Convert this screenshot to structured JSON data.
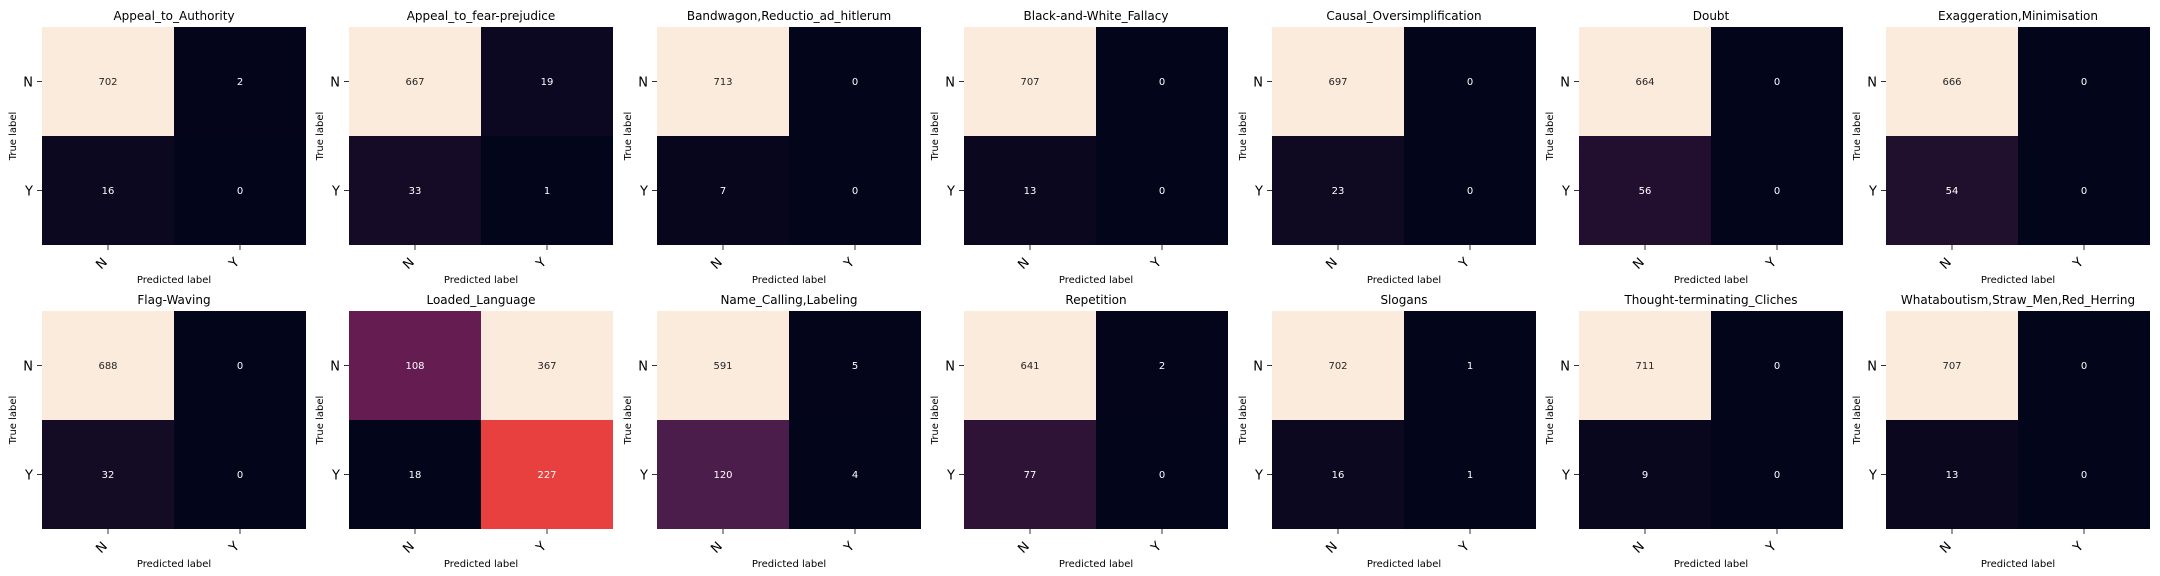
{
  "chart_data": [
    {
      "type": "heatmap",
      "title": "Appeal_to_Authority",
      "xlabel": "Predicted label",
      "ylabel": "True label",
      "x_categories": [
        "N",
        "Y"
      ],
      "y_categories": [
        "N",
        "Y"
      ],
      "values": [
        [
          702,
          2
        ],
        [
          16,
          0
        ]
      ]
    },
    {
      "type": "heatmap",
      "title": "Appeal_to_fear-prejudice",
      "xlabel": "Predicted label",
      "ylabel": "True label",
      "x_categories": [
        "N",
        "Y"
      ],
      "y_categories": [
        "N",
        "Y"
      ],
      "values": [
        [
          667,
          19
        ],
        [
          33,
          1
        ]
      ]
    },
    {
      "type": "heatmap",
      "title": "Bandwagon,Reductio_ad_hitlerum",
      "xlabel": "Predicted label",
      "ylabel": "True label",
      "x_categories": [
        "N",
        "Y"
      ],
      "y_categories": [
        "N",
        "Y"
      ],
      "values": [
        [
          713,
          0
        ],
        [
          7,
          0
        ]
      ]
    },
    {
      "type": "heatmap",
      "title": "Black-and-White_Fallacy",
      "xlabel": "Predicted label",
      "ylabel": "True label",
      "x_categories": [
        "N",
        "Y"
      ],
      "y_categories": [
        "N",
        "Y"
      ],
      "values": [
        [
          707,
          0
        ],
        [
          13,
          0
        ]
      ]
    },
    {
      "type": "heatmap",
      "title": "Causal_Oversimplification",
      "xlabel": "Predicted label",
      "ylabel": "True label",
      "x_categories": [
        "N",
        "Y"
      ],
      "y_categories": [
        "N",
        "Y"
      ],
      "values": [
        [
          697,
          0
        ],
        [
          23,
          0
        ]
      ]
    },
    {
      "type": "heatmap",
      "title": "Doubt",
      "xlabel": "Predicted label",
      "ylabel": "True label",
      "x_categories": [
        "N",
        "Y"
      ],
      "y_categories": [
        "N",
        "Y"
      ],
      "values": [
        [
          664,
          0
        ],
        [
          56,
          0
        ]
      ]
    },
    {
      "type": "heatmap",
      "title": "Exaggeration,Minimisation",
      "xlabel": "Predicted label",
      "ylabel": "True label",
      "x_categories": [
        "N",
        "Y"
      ],
      "y_categories": [
        "N",
        "Y"
      ],
      "values": [
        [
          666,
          0
        ],
        [
          54,
          0
        ]
      ]
    },
    {
      "type": "heatmap",
      "title": "Flag-Waving",
      "xlabel": "Predicted label",
      "ylabel": "True label",
      "x_categories": [
        "N",
        "Y"
      ],
      "y_categories": [
        "N",
        "Y"
      ],
      "values": [
        [
          688,
          0
        ],
        [
          32,
          0
        ]
      ]
    },
    {
      "type": "heatmap",
      "title": "Loaded_Language",
      "xlabel": "Predicted label",
      "ylabel": "True label",
      "x_categories": [
        "N",
        "Y"
      ],
      "y_categories": [
        "N",
        "Y"
      ],
      "values": [
        [
          108,
          367
        ],
        [
          18,
          227
        ]
      ]
    },
    {
      "type": "heatmap",
      "title": "Name_Calling,Labeling",
      "xlabel": "Predicted label",
      "ylabel": "True label",
      "x_categories": [
        "N",
        "Y"
      ],
      "y_categories": [
        "N",
        "Y"
      ],
      "values": [
        [
          591,
          5
        ],
        [
          120,
          4
        ]
      ]
    },
    {
      "type": "heatmap",
      "title": "Repetition",
      "xlabel": "Predicted label",
      "ylabel": "True label",
      "x_categories": [
        "N",
        "Y"
      ],
      "y_categories": [
        "N",
        "Y"
      ],
      "values": [
        [
          641,
          2
        ],
        [
          77,
          0
        ]
      ]
    },
    {
      "type": "heatmap",
      "title": "Slogans",
      "xlabel": "Predicted label",
      "ylabel": "True label",
      "x_categories": [
        "N",
        "Y"
      ],
      "y_categories": [
        "N",
        "Y"
      ],
      "values": [
        [
          702,
          1
        ],
        [
          16,
          1
        ]
      ]
    },
    {
      "type": "heatmap",
      "title": "Thought-terminating_Cliches",
      "xlabel": "Predicted label",
      "ylabel": "True label",
      "x_categories": [
        "N",
        "Y"
      ],
      "y_categories": [
        "N",
        "Y"
      ],
      "values": [
        [
          711,
          0
        ],
        [
          9,
          0
        ]
      ]
    },
    {
      "type": "heatmap",
      "title": "Whataboutism,Straw_Men,Red_Herring",
      "xlabel": "Predicted label",
      "ylabel": "True label",
      "x_categories": [
        "N",
        "Y"
      ],
      "y_categories": [
        "N",
        "Y"
      ],
      "values": [
        [
          707,
          0
        ],
        [
          13,
          0
        ]
      ]
    }
  ],
  "colormap": {
    "name": "rocket",
    "stops": [
      "#03051a",
      "#4c1d4b",
      "#a11a5b",
      "#e83f3f",
      "#f69c73",
      "#faebdd"
    ]
  }
}
